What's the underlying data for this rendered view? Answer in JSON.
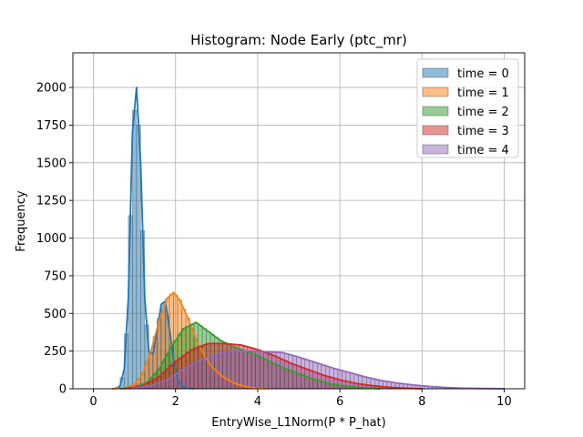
{
  "chart_data": {
    "type": "histogram",
    "title": "Histogram: Node Early (ptc_mr)",
    "xlabel": "EntryWise_L1Norm(P * P_hat)",
    "ylabel": "Frequency",
    "xlim": [
      -0.5,
      10.5
    ],
    "ylim": [
      0,
      2230
    ],
    "xticks": [
      0,
      2,
      4,
      6,
      8,
      10
    ],
    "yticks": [
      0,
      250,
      500,
      750,
      1000,
      1250,
      1500,
      1750,
      2000
    ],
    "grid": true,
    "legend_position": "top-right",
    "bin_width": 0.1,
    "series": [
      {
        "name": "time = 0",
        "color": "#1f77b4",
        "points": [
          [
            0.55,
            0
          ],
          [
            0.65,
            20
          ],
          [
            0.75,
            130
          ],
          [
            0.85,
            600
          ],
          [
            0.95,
            1700
          ],
          [
            1.05,
            2000
          ],
          [
            1.15,
            1500
          ],
          [
            1.25,
            600
          ],
          [
            1.35,
            250
          ],
          [
            1.45,
            230
          ],
          [
            1.55,
            380
          ],
          [
            1.65,
            560
          ],
          [
            1.75,
            580
          ],
          [
            1.85,
            400
          ],
          [
            1.95,
            200
          ],
          [
            2.05,
            60
          ],
          [
            2.15,
            20
          ],
          [
            2.25,
            5
          ],
          [
            2.45,
            0
          ]
        ]
      },
      {
        "name": "time = 1",
        "color": "#ff7f0e",
        "points": [
          [
            0.45,
            0
          ],
          [
            0.8,
            8
          ],
          [
            1.0,
            30
          ],
          [
            1.2,
            100
          ],
          [
            1.4,
            250
          ],
          [
            1.6,
            450
          ],
          [
            1.8,
            600
          ],
          [
            1.95,
            640
          ],
          [
            2.1,
            590
          ],
          [
            2.3,
            470
          ],
          [
            2.5,
            330
          ],
          [
            2.7,
            220
          ],
          [
            2.9,
            140
          ],
          [
            3.1,
            90
          ],
          [
            3.3,
            55
          ],
          [
            3.5,
            30
          ],
          [
            3.7,
            15
          ],
          [
            3.9,
            6
          ],
          [
            4.2,
            0
          ]
        ]
      },
      {
        "name": "time = 2",
        "color": "#2ca02c",
        "points": [
          [
            0.65,
            0
          ],
          [
            1.0,
            10
          ],
          [
            1.3,
            40
          ],
          [
            1.6,
            130
          ],
          [
            1.9,
            280
          ],
          [
            2.2,
            400
          ],
          [
            2.5,
            440
          ],
          [
            2.8,
            380
          ],
          [
            3.1,
            320
          ],
          [
            3.4,
            280
          ],
          [
            3.7,
            250
          ],
          [
            4.0,
            220
          ],
          [
            4.3,
            180
          ],
          [
            4.6,
            140
          ],
          [
            5.0,
            100
          ],
          [
            5.4,
            60
          ],
          [
            5.8,
            30
          ],
          [
            6.2,
            15
          ],
          [
            6.6,
            5
          ],
          [
            7.0,
            0
          ]
        ]
      },
      {
        "name": "time = 3",
        "color": "#d62728",
        "points": [
          [
            0.75,
            0
          ],
          [
            1.2,
            20
          ],
          [
            1.6,
            80
          ],
          [
            2.0,
            180
          ],
          [
            2.4,
            260
          ],
          [
            2.8,
            300
          ],
          [
            3.2,
            300
          ],
          [
            3.6,
            290
          ],
          [
            4.0,
            260
          ],
          [
            4.4,
            220
          ],
          [
            4.8,
            170
          ],
          [
            5.2,
            130
          ],
          [
            5.6,
            90
          ],
          [
            6.0,
            60
          ],
          [
            6.4,
            35
          ],
          [
            6.8,
            20
          ],
          [
            7.2,
            10
          ],
          [
            7.6,
            4
          ],
          [
            8.0,
            0
          ]
        ]
      },
      {
        "name": "time = 4",
        "color": "#9467bd",
        "points": [
          [
            0.85,
            0
          ],
          [
            1.4,
            20
          ],
          [
            1.8,
            60
          ],
          [
            2.2,
            130
          ],
          [
            2.6,
            190
          ],
          [
            3.0,
            230
          ],
          [
            3.4,
            250
          ],
          [
            3.8,
            250
          ],
          [
            4.2,
            245
          ],
          [
            4.6,
            240
          ],
          [
            5.0,
            210
          ],
          [
            5.4,
            175
          ],
          [
            5.8,
            140
          ],
          [
            6.2,
            110
          ],
          [
            6.6,
            80
          ],
          [
            7.0,
            55
          ],
          [
            7.4,
            38
          ],
          [
            7.8,
            25
          ],
          [
            8.2,
            15
          ],
          [
            8.6,
            8
          ],
          [
            9.0,
            4
          ],
          [
            9.4,
            2
          ],
          [
            10.0,
            0
          ]
        ]
      }
    ]
  }
}
